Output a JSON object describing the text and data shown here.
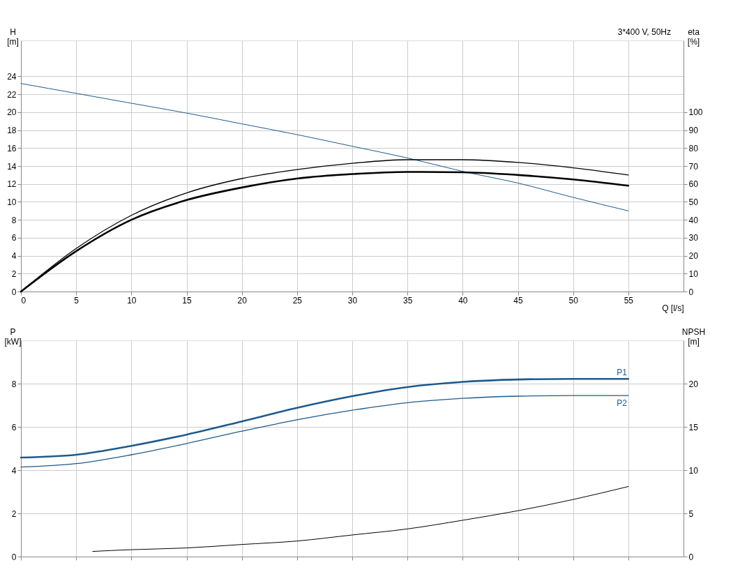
{
  "chart_data": [
    {
      "type": "line",
      "title": "3*400 V, 50Hz",
      "xlabel": "Q [l/s]",
      "ylabel": "H [m]",
      "y2label": "eta [%]",
      "x": [
        0,
        5,
        10,
        15,
        20,
        25,
        30,
        35,
        40,
        45,
        50,
        55
      ],
      "xlim": [
        0,
        60
      ],
      "xticks": [
        0,
        5,
        10,
        15,
        20,
        25,
        30,
        35,
        40,
        45,
        50,
        55
      ],
      "ylim": [
        0,
        28
      ],
      "yticks": [
        0,
        2,
        4,
        6,
        8,
        10,
        12,
        14,
        16,
        18,
        20,
        22,
        24
      ],
      "y2lim": [
        0,
        140
      ],
      "y2ticks": [
        0,
        10,
        20,
        30,
        40,
        50,
        60,
        70,
        80,
        90,
        100
      ],
      "grid": true,
      "series": [
        {
          "color": "#1f5a8c",
          "values": [
            23.2,
            22.1,
            21.0,
            19.9,
            18.7,
            17.5,
            16.2,
            14.9,
            13.4,
            12.1,
            10.5,
            9.0
          ]
        },
        {
          "color": "#000000",
          "axis": "y2",
          "values": [
            0,
            22.5,
            40,
            51,
            58,
            63,
            65.5,
            66.7,
            66.5,
            65,
            62.5,
            59
          ]
        },
        {
          "color": "#000000",
          "axis": "y2",
          "values": [
            0,
            24,
            42.5,
            55,
            63,
            68,
            71.5,
            73.5,
            73.5,
            72,
            69,
            65
          ]
        }
      ]
    },
    {
      "type": "line",
      "ylabel": "P [kW]",
      "y2label": "NPSH [m]",
      "x": [
        0,
        5,
        10,
        15,
        20,
        25,
        30,
        35,
        40,
        45,
        50,
        55
      ],
      "xlim": [
        0,
        60
      ],
      "xticks": [
        0,
        5,
        10,
        15,
        20,
        25,
        30,
        35,
        40,
        45,
        50,
        55
      ],
      "ylim": [
        0,
        10
      ],
      "yticks": [
        0,
        2,
        4,
        6,
        8
      ],
      "y2lim": [
        0,
        25
      ],
      "y2ticks": [
        0,
        5,
        10,
        15,
        20
      ],
      "grid": true,
      "tick_labels": "y",
      "series": [
        {
          "name": "P1",
          "color": "#1f5a8c",
          "values": [
            4.58,
            4.71,
            5.12,
            5.64,
            6.25,
            6.88,
            7.42,
            7.84,
            8.08,
            8.19,
            8.22,
            8.22
          ]
        },
        {
          "name": "P2",
          "color": "#1f5a8c",
          "values": [
            4.14,
            4.3,
            4.71,
            5.23,
            5.8,
            6.33,
            6.77,
            7.12,
            7.32,
            7.42,
            7.45,
            7.45
          ]
        },
        {
          "color": "#000000",
          "axis": "y2",
          "x": [
            6.5,
            10,
            15,
            20,
            25,
            30,
            35,
            40,
            45,
            50,
            55
          ],
          "values": [
            0.6,
            0.8,
            1.0,
            1.4,
            1.8,
            2.5,
            3.2,
            4.2,
            5.3,
            6.6,
            8.1
          ]
        }
      ]
    }
  ]
}
